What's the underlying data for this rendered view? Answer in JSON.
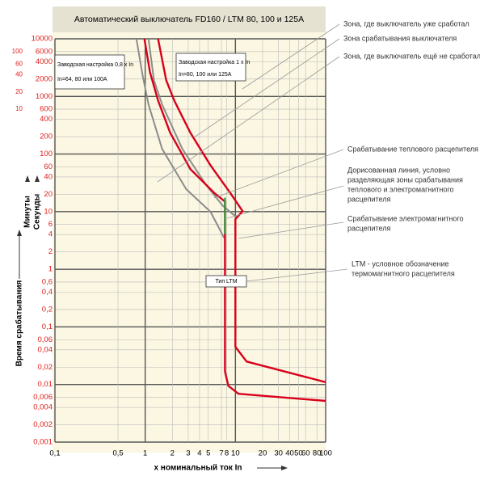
{
  "chart_data": {
    "type": "line",
    "title": "Автоматический выключатель FD160 / LTM 80, 100 и 125A",
    "xlabel": "x номинальный ток In",
    "ylabel": "Время срабатывания",
    "ylabel_minutes": "Минуты",
    "ylabel_seconds": "Секунды",
    "log_x": true,
    "log_y": true,
    "grid": true,
    "xlim": [
      0.1,
      100
    ],
    "ylim": [
      0.001,
      10000
    ],
    "xticks": [
      {
        "value": 0.1,
        "label": "0,1"
      },
      {
        "value": 0.5,
        "label": "0,5"
      },
      1,
      2,
      3,
      4,
      5,
      7,
      8,
      10,
      20,
      30,
      40,
      50,
      60,
      80,
      100
    ],
    "yticks": [
      10000,
      6000,
      4000,
      2000,
      1000,
      600,
      400,
      200,
      100,
      60,
      40,
      20,
      10,
      6,
      4,
      2,
      1,
      {
        "value": 0.6,
        "label": "0,6"
      },
      {
        "value": 0.4,
        "label": "0,4"
      },
      {
        "value": 0.2,
        "label": "0,2"
      },
      {
        "value": 0.1,
        "label": "0,1"
      },
      {
        "value": 0.06,
        "label": "0,06"
      },
      {
        "value": 0.04,
        "label": "0,04"
      },
      {
        "value": 0.02,
        "label": "0,02"
      },
      {
        "value": 0.01,
        "label": "0,01"
      },
      {
        "value": 0.006,
        "label": "0,006"
      },
      {
        "value": 0.004,
        "label": "0,004"
      },
      {
        "value": 0.002,
        "label": "0,002"
      },
      {
        "value": 0.001,
        "label": "0,001"
      }
    ],
    "minute_ticks": [
      {
        "value": 6000,
        "label": "100"
      },
      {
        "value": 3600,
        "label": "60"
      },
      {
        "value": 2400,
        "label": "40"
      },
      {
        "value": 1200,
        "label": "20"
      },
      {
        "value": 600,
        "label": "10"
      }
    ],
    "series": [
      {
        "color": "#8c8c8c",
        "x": [
          0.8,
          0.94,
          1.09,
          1.54,
          2.85,
          5.28,
          7.5
        ],
        "values": [
          10000,
          2240,
          724,
          123,
          24.5,
          10,
          3.5
        ]
      },
      {
        "color": "#8c8c8c",
        "x": [
          1.09,
          1.25,
          1.54,
          2.58,
          4.76,
          7.2,
          10.4
        ],
        "values": [
          10000,
          1910,
          724,
          123,
          28.8,
          12.8,
          7.9
        ]
      },
      {
        "color": "#d9001b",
        "x": [
          0.98,
          1.13,
          1.39,
          1.89,
          3.16,
          5.85,
          7.66,
          7.66,
          8.33,
          10.8,
          100
        ],
        "values": [
          10000,
          2630,
          850,
          235,
          55,
          21,
          15,
          0.017,
          0.0095,
          0.0069,
          0.0052
        ]
      },
      {
        "color": "#d9001b",
        "x": [
          1.39,
          1.71,
          2.1,
          3.16,
          5.28,
          8.8,
          12,
          10,
          10,
          13.3,
          100
        ],
        "values": [
          10000,
          1910,
          850,
          235,
          64,
          21,
          10.2,
          7.4,
          0.045,
          0.025,
          0.011
        ]
      },
      {
        "color": "#1aa33a",
        "x": [
          7.66,
          7.66
        ],
        "values": [
          17.5,
          4.1
        ]
      }
    ],
    "boxes": [
      [
        "Заводская настройка 0,8 x In",
        "In=64, 80 или 100А"
      ],
      [
        "Заводская настройка 1 x In",
        "In=80, 100 или 125А"
      ],
      [
        "Тип LTM"
      ]
    ],
    "annotations": [
      [
        "Зона, где выключатель уже сработал"
      ],
      [
        "Зона срабатывания выключателя"
      ],
      [
        "Зона, где выключатель ещё не сработал"
      ],
      [
        "Срабатывание теплового расцепителя"
      ],
      [
        "Дорисованная линия, условно",
        "разделяющая зоны срабатывания",
        "теплового и электромагнитного",
        "расцепителя"
      ],
      [
        "Срабатывание электромагнитного",
        "расцепителя"
      ],
      [
        "LTM - условное обозначение",
        "термомагнитного расцепителя"
      ]
    ]
  }
}
